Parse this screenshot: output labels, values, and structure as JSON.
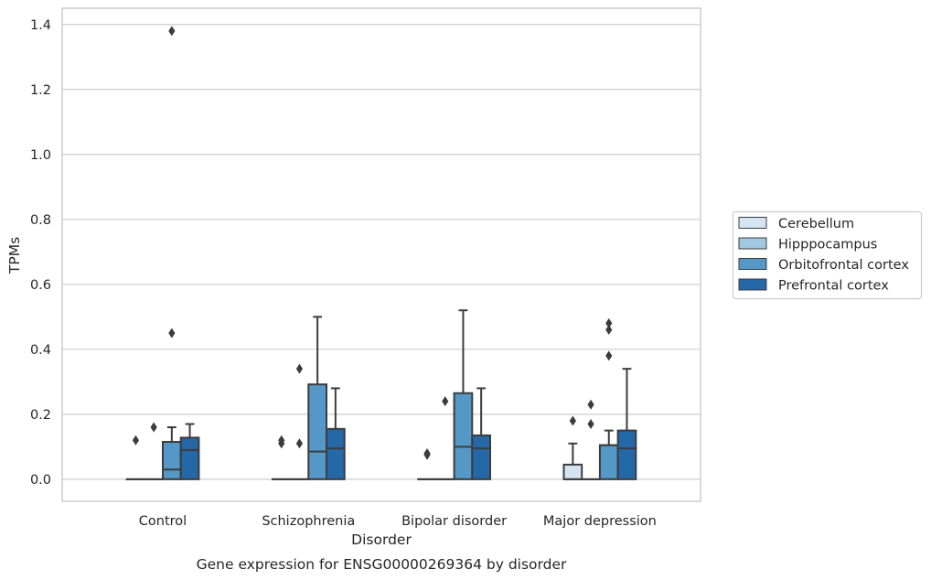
{
  "chart_data": {
    "type": "boxplot",
    "title": "",
    "caption": "Gene expression for ENSG00000269364 by disorder",
    "xlabel": "Disorder",
    "ylabel": "TPMs",
    "ylim": [
      -0.068,
      1.45
    ],
    "yticks": [
      0.0,
      0.2,
      0.4,
      0.6,
      0.8,
      1.0,
      1.2,
      1.4
    ],
    "ytick_labels": [
      "0.0",
      "0.2",
      "0.4",
      "0.6",
      "0.8",
      "1.0",
      "1.2",
      "1.4"
    ],
    "grid": "horizontal",
    "legend_position": "right",
    "categories": [
      "Control",
      "Schizophrenia",
      "Bipolar disorder",
      "Major depression"
    ],
    "series": [
      {
        "name": "Cerebellum",
        "color": "#d4e4f2",
        "boxes": [
          {
            "q1": 0.0,
            "median": 0.0,
            "q3": 0.0,
            "whisker_low": 0.0,
            "whisker_high": 0.0,
            "outliers": [
              0.12
            ]
          },
          {
            "q1": 0.0,
            "median": 0.0,
            "q3": 0.0,
            "whisker_low": 0.0,
            "whisker_high": 0.0,
            "outliers": [
              0.11,
              0.12
            ]
          },
          {
            "q1": 0.0,
            "median": 0.0,
            "q3": 0.0,
            "whisker_low": 0.0,
            "whisker_high": 0.0,
            "outliers": [
              0.08,
              0.075
            ]
          },
          {
            "q1": 0.0,
            "median": 0.0,
            "q3": 0.045,
            "whisker_low": 0.0,
            "whisker_high": 0.11,
            "outliers": [
              0.18
            ]
          }
        ]
      },
      {
        "name": "Hipppocampus",
        "color": "#a0c8e0",
        "boxes": [
          {
            "q1": 0.0,
            "median": 0.0,
            "q3": 0.0,
            "whisker_low": 0.0,
            "whisker_high": 0.0,
            "outliers": [
              0.16
            ]
          },
          {
            "q1": 0.0,
            "median": 0.0,
            "q3": 0.0,
            "whisker_low": 0.0,
            "whisker_high": 0.0,
            "outliers": [
              0.34,
              0.11
            ]
          },
          {
            "q1": 0.0,
            "median": 0.0,
            "q3": 0.0,
            "whisker_low": 0.0,
            "whisker_high": 0.0,
            "outliers": [
              0.24
            ]
          },
          {
            "q1": 0.0,
            "median": 0.0,
            "q3": 0.0,
            "whisker_low": 0.0,
            "whisker_high": 0.0,
            "outliers": [
              0.23,
              0.17
            ]
          }
        ]
      },
      {
        "name": "Orbitofrontal cortex",
        "color": "#5597c7",
        "boxes": [
          {
            "q1": 0.0,
            "median": 0.03,
            "q3": 0.115,
            "whisker_low": 0.0,
            "whisker_high": 0.16,
            "outliers": [
              1.38,
              0.45
            ]
          },
          {
            "q1": 0.0,
            "median": 0.085,
            "q3": 0.292,
            "whisker_low": 0.0,
            "whisker_high": 0.5,
            "outliers": []
          },
          {
            "q1": 0.0,
            "median": 0.1,
            "q3": 0.265,
            "whisker_low": 0.0,
            "whisker_high": 0.52,
            "outliers": []
          },
          {
            "q1": 0.0,
            "median": 0.105,
            "q3": 0.105,
            "whisker_low": 0.0,
            "whisker_high": 0.15,
            "outliers": [
              0.48,
              0.46,
              0.38
            ]
          }
        ]
      },
      {
        "name": "Prefrontal cortex",
        "color": "#2468a8",
        "boxes": [
          {
            "q1": 0.0,
            "median": 0.09,
            "q3": 0.128,
            "whisker_low": 0.0,
            "whisker_high": 0.17,
            "outliers": []
          },
          {
            "q1": 0.0,
            "median": 0.095,
            "q3": 0.155,
            "whisker_low": 0.0,
            "whisker_high": 0.28,
            "outliers": []
          },
          {
            "q1": 0.0,
            "median": 0.095,
            "q3": 0.135,
            "whisker_low": 0.0,
            "whisker_high": 0.28,
            "outliers": []
          },
          {
            "q1": 0.0,
            "median": 0.095,
            "q3": 0.15,
            "whisker_low": 0.0,
            "whisker_high": 0.34,
            "outliers": []
          }
        ]
      }
    ]
  },
  "style": {
    "line_color": "#3c3c3c",
    "grid_color": "#cccccc",
    "frame_color": "#cccccc"
  }
}
